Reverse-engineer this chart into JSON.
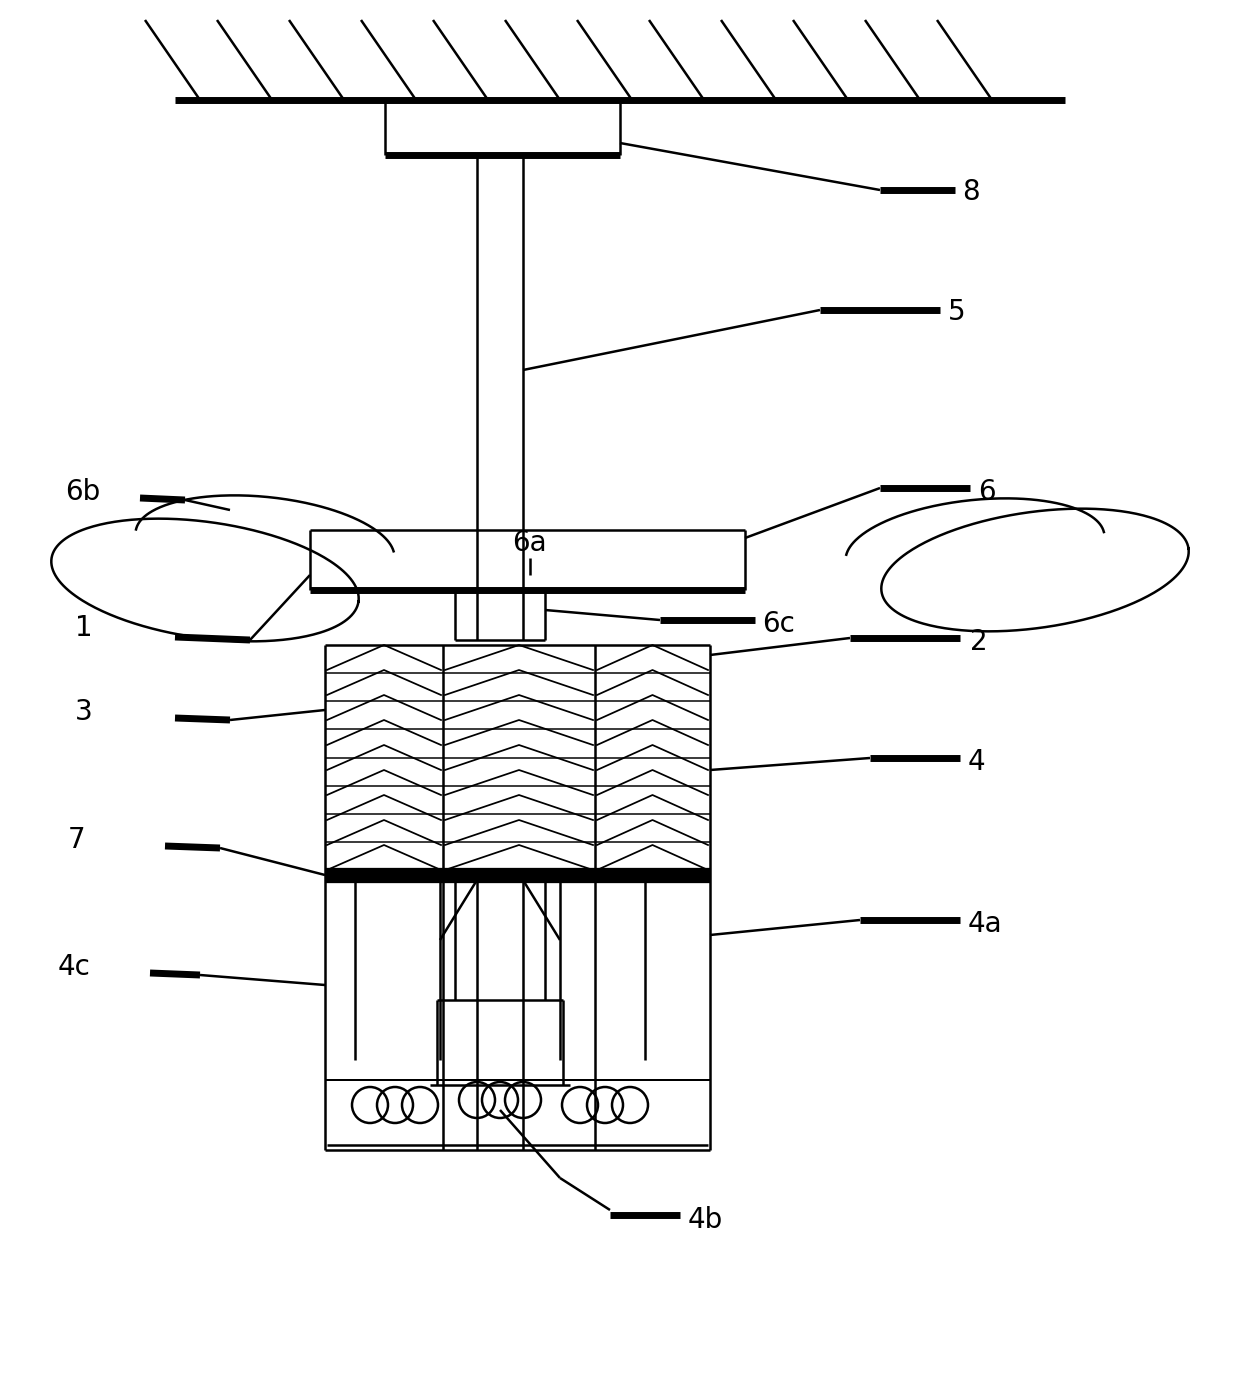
{
  "fig_width": 12.4,
  "fig_height": 13.76,
  "bg_color": "#ffffff",
  "line_color": "#000000",
  "lw": 1.8,
  "lw_thick": 5.0,
  "label_fontsize": 20,
  "xlim": [
    0,
    1240
  ],
  "ylim": [
    0,
    1376
  ]
}
